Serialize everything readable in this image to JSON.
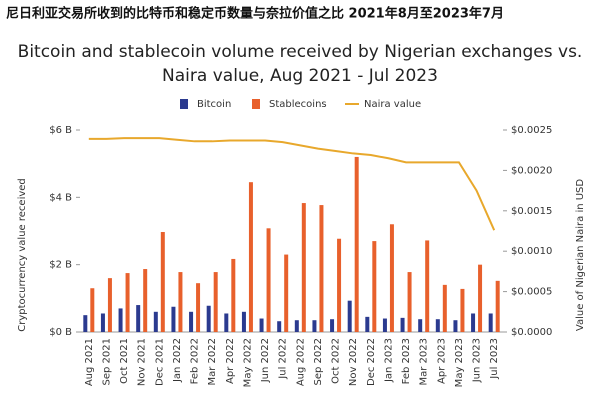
{
  "chart_data": {
    "type": "bar",
    "supertitle": "尼日利亚交易所收到的比特币和稳定币数量与奈拉价值之比 2021年8月至2023年7月",
    "title": "Bitcoin and stablecoin volume received by Nigerian exchanges vs.",
    "title_line2": "Naira value, Aug 2021 - Jul 2023",
    "ylabel": "Cryptocurrency value received",
    "y2label": "Value of Nigerian Naira in USD",
    "categories": [
      "Aug 2021",
      "Sep 2021",
      "Oct 2021",
      "Nov 2021",
      "Dec 2021",
      "Jan 2022",
      "Feb 2022",
      "Mar 2022",
      "Apr 2022",
      "May 2022",
      "Jun 2022",
      "Jul 2022",
      "Aug 2022",
      "Sep 2022",
      "Oct 2022",
      "Nov 2022",
      "Dec 2022",
      "Jan 2023",
      "Feb 2023",
      "Mar 2023",
      "Apr 2023",
      "May 2023",
      "Jun 2023",
      "Jul 2023"
    ],
    "series": [
      {
        "name": "Bitcoin",
        "type": "bar",
        "color": "#2b3a8f",
        "values": [
          0.5,
          0.55,
          0.7,
          0.8,
          0.6,
          0.75,
          0.6,
          0.78,
          0.55,
          0.6,
          0.4,
          0.32,
          0.35,
          0.35,
          0.38,
          0.93,
          0.45,
          0.4,
          0.42,
          0.38,
          0.38,
          0.35,
          0.55,
          0.55
        ]
      },
      {
        "name": "Stablecoins",
        "type": "bar",
        "color": "#e8602c",
        "values": [
          1.3,
          1.6,
          1.75,
          1.87,
          2.97,
          1.78,
          1.45,
          1.78,
          2.17,
          4.45,
          3.08,
          2.3,
          3.83,
          3.77,
          2.77,
          5.2,
          2.7,
          3.2,
          1.78,
          2.72,
          1.4,
          1.28,
          2.0,
          1.52
        ]
      },
      {
        "name": "Naira value",
        "type": "line",
        "axis": "y2",
        "color": "#e8a82c",
        "values": [
          0.00239,
          0.00239,
          0.0024,
          0.0024,
          0.0024,
          0.00238,
          0.00236,
          0.00236,
          0.00237,
          0.00237,
          0.00237,
          0.00235,
          0.00231,
          0.00227,
          0.00224,
          0.00221,
          0.00219,
          0.00215,
          0.0021,
          0.0021,
          0.0021,
          0.0021,
          0.00175,
          0.00126
        ]
      }
    ],
    "ylim": [
      0,
      6
    ],
    "yticks": [
      {
        "value": 0,
        "label": "$0 B"
      },
      {
        "value": 2,
        "label": "$2 B"
      },
      {
        "value": 4,
        "label": "$4 B"
      },
      {
        "value": 6,
        "label": "$6 B"
      }
    ],
    "y2lim": [
      0,
      0.0025
    ],
    "y2ticks": [
      {
        "value": 0,
        "label": "$0.0000"
      },
      {
        "value": 0.0005,
        "label": "$0.0005"
      },
      {
        "value": 0.001,
        "label": "$0.0010"
      },
      {
        "value": 0.0015,
        "label": "$0.0015"
      },
      {
        "value": 0.002,
        "label": "$0.0020"
      },
      {
        "value": 0.0025,
        "label": "$0.0025"
      }
    ],
    "grid": false,
    "legend": "top"
  }
}
